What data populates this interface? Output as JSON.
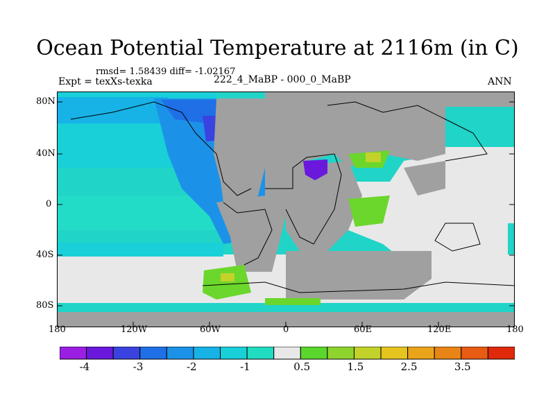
{
  "title": "Ocean Potential Temperature at 2116m (in C)",
  "stats": "rmsd= 1.58439 diff= -1.02167",
  "expt": "Expt = texXs-texka",
  "difference": "222_4_MaBP - 000_0_MaBP",
  "season": "ANN",
  "y_axis_labels": [
    "80N",
    "40N",
    "0",
    "40S",
    "80S"
  ],
  "x_axis_labels": [
    "180",
    "120W",
    "60W",
    "0",
    "60E",
    "120E",
    "180"
  ],
  "colorbar": {
    "colors": [
      "#9b1fe3",
      "#6a18dc",
      "#3a43e0",
      "#1f6fe6",
      "#1b92e8",
      "#17b2e6",
      "#19cfd8",
      "#20dcc0",
      "#e8e8e8",
      "#5ad62d",
      "#8fd42c",
      "#c3d22a",
      "#e5c41f",
      "#eaa41a",
      "#e98416",
      "#e85b12",
      "#e0290b"
    ],
    "labels": [
      "-4",
      "-3",
      "-2",
      "-1",
      "0.5",
      "1.5",
      "2.5",
      "3.5"
    ]
  },
  "map_colors": {
    "land": "#a0a0a0",
    "ocean_base": "#20d4c8",
    "cold_band": "#17b2e6",
    "deep_cold": "#1f6fe6",
    "coldest": "#6a18dc",
    "neutral": "#e8e8e8",
    "warm_low": "#6bd62c",
    "warm_mid": "#c3d22a"
  }
}
